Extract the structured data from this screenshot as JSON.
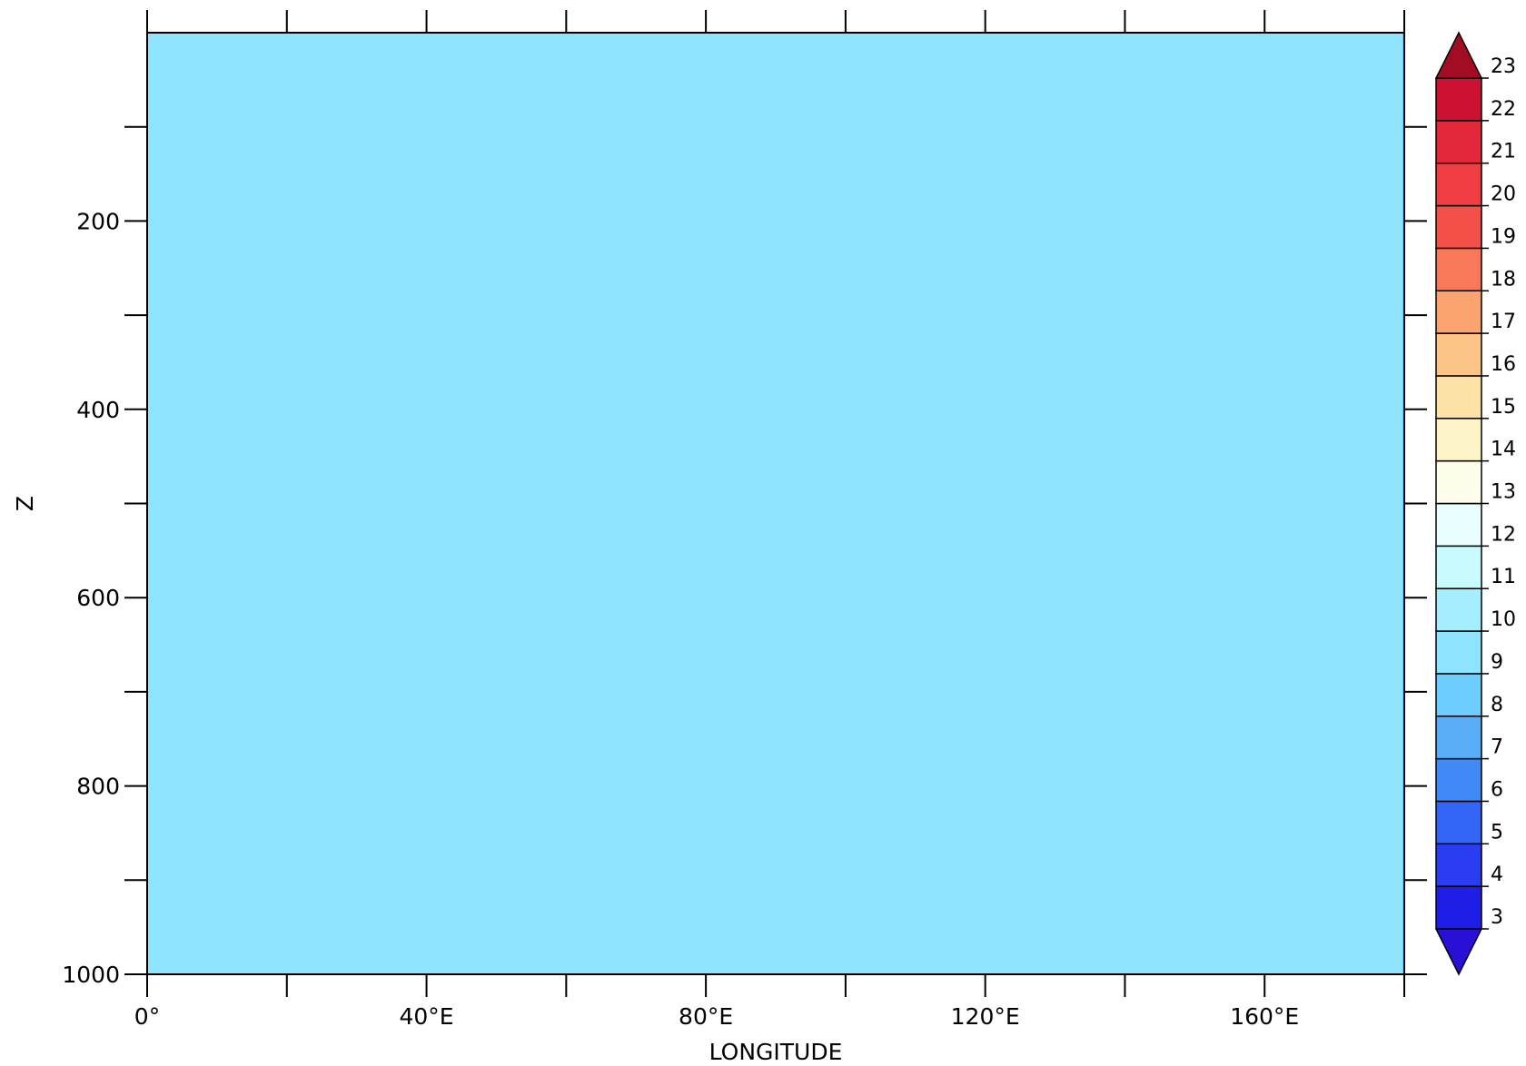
{
  "chart_data": {
    "type": "heatmap",
    "title": "",
    "xlabel": "LONGITUDE",
    "ylabel": "Z",
    "xlim": [
      0,
      180
    ],
    "ylim": [
      0,
      1000
    ],
    "y_inverted": true,
    "x_ticks": [
      0,
      20,
      40,
      60,
      80,
      100,
      120,
      140,
      160,
      180
    ],
    "x_tick_labels": [
      {
        "value": 0,
        "label": "0°"
      },
      {
        "value": 40,
        "label": "40°E"
      },
      {
        "value": 80,
        "label": "80°E"
      },
      {
        "value": 120,
        "label": "120°E"
      },
      {
        "value": 160,
        "label": "160°E"
      }
    ],
    "y_ticks": [
      100,
      200,
      300,
      400,
      500,
      600,
      700,
      800,
      900,
      1000
    ],
    "y_tick_labels": [
      {
        "value": 200,
        "label": "200"
      },
      {
        "value": 400,
        "label": "400"
      },
      {
        "value": 600,
        "label": "600"
      },
      {
        "value": 800,
        "label": "800"
      },
      {
        "value": 1000,
        "label": "1000"
      }
    ],
    "fill_regions": [
      {
        "x": [
          0,
          179.7
        ],
        "y": [
          0,
          1000
        ],
        "color": "#8ee3ff",
        "value_range": [
          9,
          10
        ]
      },
      {
        "x": [
          179.7,
          180
        ],
        "y": [
          0,
          1000
        ],
        "color": "#6dcdff",
        "value_range": [
          8,
          9
        ]
      }
    ],
    "colorbar": {
      "levels": [
        3,
        4,
        5,
        6,
        7,
        8,
        9,
        10,
        11,
        12,
        13,
        14,
        15,
        16,
        17,
        18,
        19,
        20,
        21,
        22,
        23
      ],
      "extend": "both",
      "colors": [
        "#2a0fd6",
        "#1e1ee8",
        "#2b3df0",
        "#3366f7",
        "#4089f7",
        "#5aadf7",
        "#6dcdff",
        "#8ee3ff",
        "#a5eeff",
        "#c8fafe",
        "#e9fefe",
        "#fefdec",
        "#fdf4c8",
        "#fde2a6",
        "#fcc486",
        "#fba46f",
        "#f8785a",
        "#f4504a",
        "#f03e42",
        "#e4283c",
        "#cc1133",
        "#a30d23"
      ]
    }
  }
}
